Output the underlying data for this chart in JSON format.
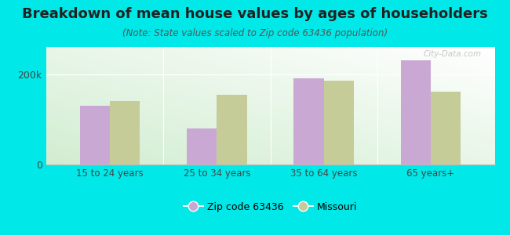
{
  "title": "Breakdown of mean house values by ages of householders",
  "subtitle": "(Note: State values scaled to Zip code 63436 population)",
  "categories": [
    "15 to 24 years",
    "25 to 34 years",
    "35 to 64 years",
    "65 years+"
  ],
  "zip_values": [
    130000,
    80000,
    190000,
    230000
  ],
  "state_values": [
    140000,
    155000,
    185000,
    162000
  ],
  "zip_color": "#c9a8d4",
  "state_color": "#c5cc98",
  "background_color": "#00e8e8",
  "ylim": [
    0,
    260000
  ],
  "yticks": [
    0,
    200000
  ],
  "ytick_labels": [
    "0",
    "200k"
  ],
  "legend_zip_label": "Zip code 63436",
  "legend_state_label": "Missouri",
  "title_fontsize": 13,
  "subtitle_fontsize": 8.5,
  "bar_width": 0.28,
  "watermark": "City-Data.com"
}
